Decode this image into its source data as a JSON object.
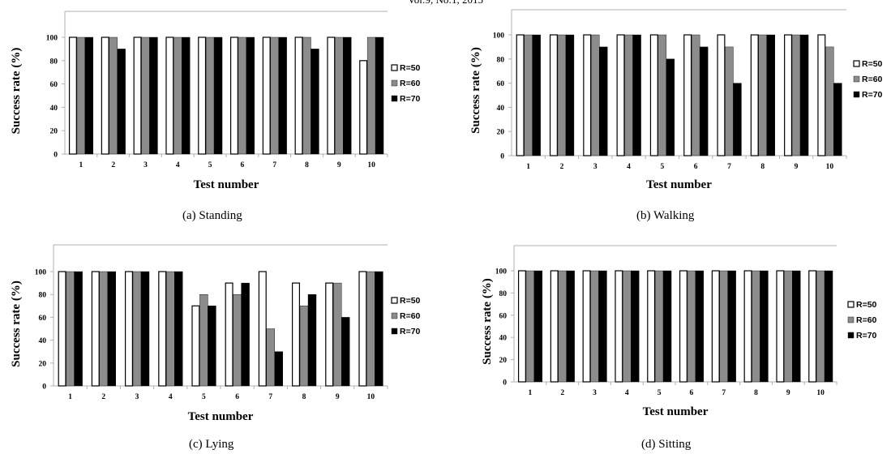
{
  "page": {
    "header": "Vol:9, No:1, 2015"
  },
  "colors": {
    "r50_fill": "#ffffff",
    "r60_fill": "#8c8c8c",
    "r70_fill": "#000000",
    "axis": "#b0b0b0"
  },
  "chart_data": [
    {
      "type": "bar",
      "caption": "(a)  Standing",
      "xlabel": "Test number",
      "ylabel": "Success rate (%)",
      "ylim": [
        0,
        100
      ],
      "yticks": [
        "0",
        "20",
        "40",
        "60",
        "80",
        "100"
      ],
      "categories": [
        "1",
        "2",
        "3",
        "4",
        "5",
        "6",
        "7",
        "8",
        "9",
        "10"
      ],
      "series": [
        {
          "name": "R=50",
          "values": [
            100,
            100,
            100,
            100,
            100,
            100,
            100,
            100,
            100,
            80
          ]
        },
        {
          "name": "R=60",
          "values": [
            100,
            100,
            100,
            100,
            100,
            100,
            100,
            100,
            100,
            100
          ]
        },
        {
          "name": "R=70",
          "values": [
            100,
            90,
            100,
            100,
            100,
            100,
            100,
            90,
            100,
            100
          ]
        }
      ],
      "legend_position": "right",
      "grid": false
    },
    {
      "type": "bar",
      "caption": "(b)  Walking",
      "xlabel": "Test number",
      "ylabel": "Success rate (%)",
      "ylim": [
        0,
        100
      ],
      "yticks": [
        "0",
        "20",
        "40",
        "60",
        "80",
        "100"
      ],
      "categories": [
        "1",
        "2",
        "3",
        "4",
        "5",
        "6",
        "7",
        "8",
        "9",
        "10"
      ],
      "series": [
        {
          "name": "R=50",
          "values": [
            100,
            100,
            100,
            100,
            100,
            100,
            100,
            100,
            100,
            100
          ]
        },
        {
          "name": "R=60",
          "values": [
            100,
            100,
            100,
            100,
            100,
            100,
            90,
            100,
            100,
            90
          ]
        },
        {
          "name": "R=70",
          "values": [
            100,
            100,
            90,
            100,
            80,
            90,
            60,
            100,
            100,
            60
          ]
        }
      ],
      "legend_position": "right",
      "grid": false
    },
    {
      "type": "bar",
      "caption": "(c)  Lying",
      "xlabel": "Test number",
      "ylabel": "Success rate (%)",
      "ylim": [
        0,
        100
      ],
      "yticks": [
        "0",
        "20",
        "40",
        "60",
        "80",
        "100"
      ],
      "categories": [
        "1",
        "2",
        "3",
        "4",
        "5",
        "6",
        "7",
        "8",
        "9",
        "10"
      ],
      "series": [
        {
          "name": "R=50",
          "values": [
            100,
            100,
            100,
            100,
            70,
            90,
            100,
            90,
            90,
            100
          ]
        },
        {
          "name": "R=60",
          "values": [
            100,
            100,
            100,
            100,
            80,
            80,
            50,
            70,
            90,
            100
          ]
        },
        {
          "name": "R=70",
          "values": [
            100,
            100,
            100,
            100,
            70,
            90,
            30,
            80,
            60,
            100
          ]
        }
      ],
      "legend_position": "right",
      "grid": false
    },
    {
      "type": "bar",
      "caption": "(d)  Sitting",
      "xlabel": "Test number",
      "ylabel": "Success rate (%)",
      "ylim": [
        0,
        100
      ],
      "yticks": [
        "0",
        "20",
        "40",
        "60",
        "80",
        "100"
      ],
      "categories": [
        "1",
        "2",
        "3",
        "4",
        "5",
        "6",
        "7",
        "8",
        "9",
        "10"
      ],
      "series": [
        {
          "name": "R=50",
          "values": [
            100,
            100,
            100,
            100,
            100,
            100,
            100,
            100,
            100,
            100
          ]
        },
        {
          "name": "R=60",
          "values": [
            100,
            100,
            100,
            100,
            100,
            100,
            100,
            100,
            100,
            100
          ]
        },
        {
          "name": "R=70",
          "values": [
            100,
            100,
            100,
            100,
            100,
            100,
            100,
            100,
            100,
            100
          ]
        }
      ],
      "legend_position": "right",
      "grid": false
    }
  ]
}
